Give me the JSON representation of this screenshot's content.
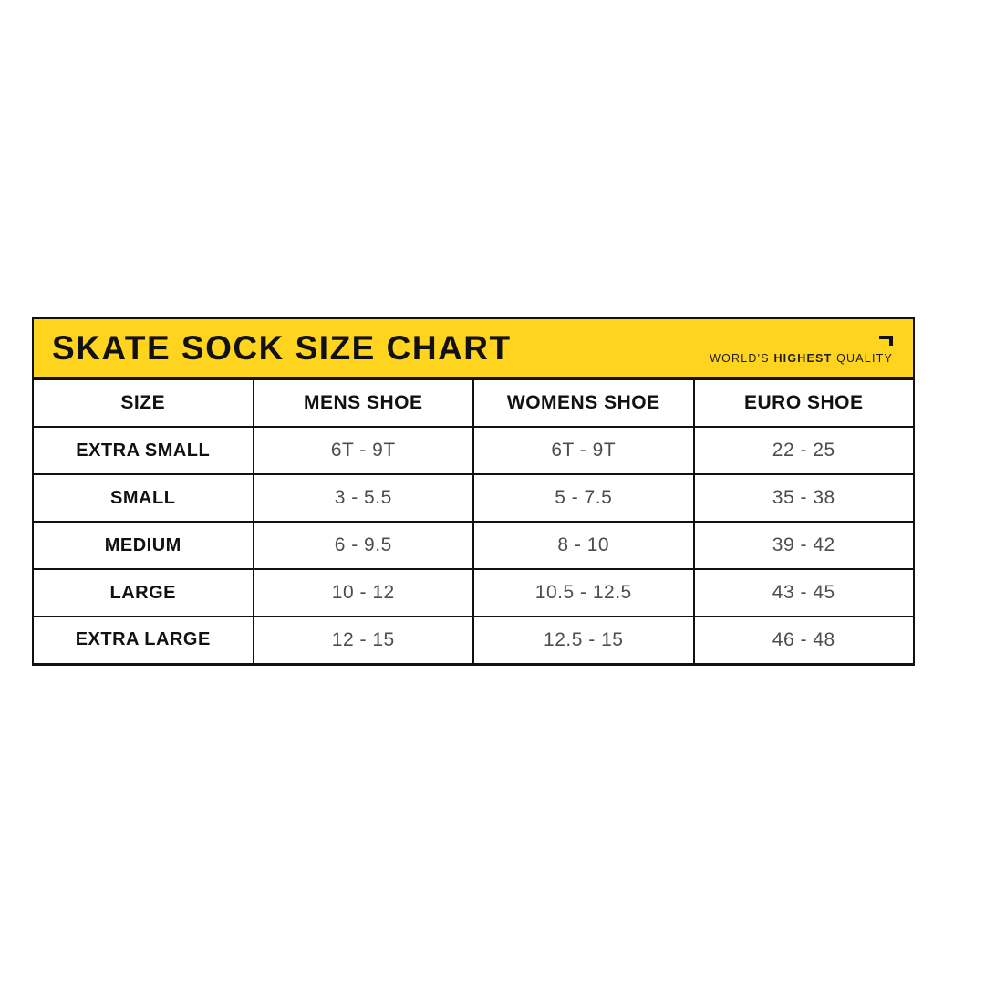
{
  "banner": {
    "title": "SKATE SOCK SIZE CHART",
    "tagline": {
      "prefix": "WORLD'S",
      "bold": "HIGHEST",
      "suffix": "QUALITY"
    }
  },
  "colors": {
    "banner_yellow": "#FFD41E",
    "line_black": "#111111",
    "value_gray": "#4D4D4D",
    "background": "#FFFFFF"
  },
  "icons": {
    "corner_bracket": "top-right corner bracket mark"
  },
  "chart_data": {
    "type": "table",
    "title": "SKATE SOCK SIZE CHART",
    "columns": [
      "SIZE",
      "MENS SHOE",
      "WOMENS SHOE",
      "EURO SHOE"
    ],
    "rows": [
      [
        "EXTRA SMALL",
        "6T - 9T",
        "6T - 9T",
        "22 - 25"
      ],
      [
        "SMALL",
        "3 - 5.5",
        "5 - 7.5",
        "35 - 38"
      ],
      [
        "MEDIUM",
        "6 - 9.5",
        "8 - 10",
        "39 - 42"
      ],
      [
        "LARGE",
        "10 - 12",
        "10.5 - 12.5",
        "43 - 45"
      ],
      [
        "EXTRA LARGE",
        "12 - 15",
        "12.5 - 15",
        "46 - 48"
      ]
    ],
    "layout": {
      "header_style": "bold black on white",
      "first_column_style": "bold black",
      "value_style": "gray regular",
      "banner_style": "yellow with black border"
    }
  }
}
